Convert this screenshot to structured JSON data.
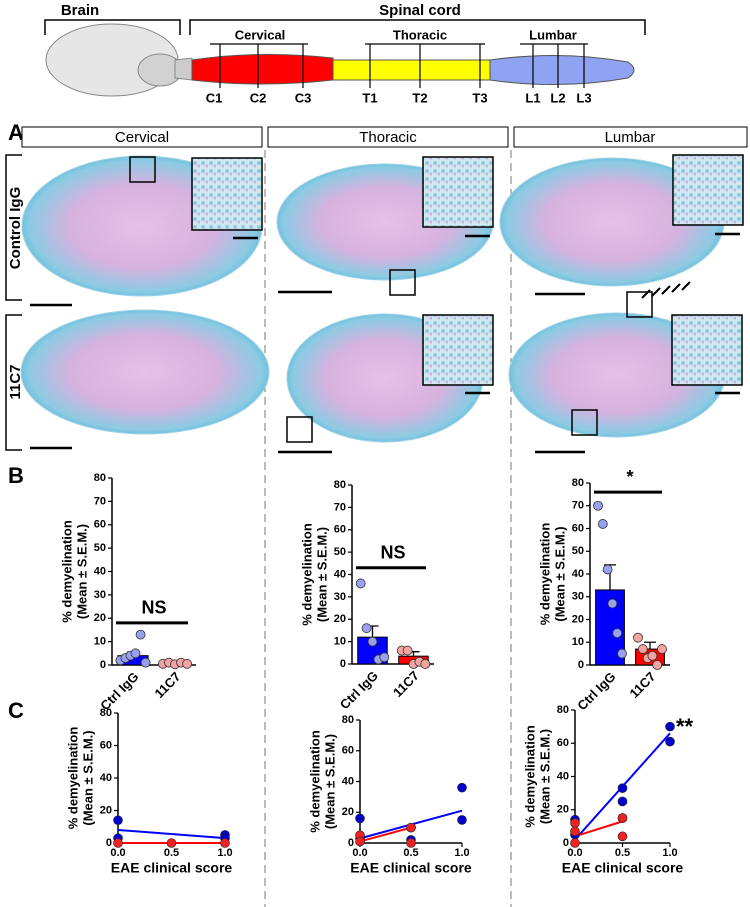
{
  "diagram": {
    "brain": "Brain",
    "spinal_cord": "Spinal cord",
    "regions": [
      {
        "name": "Cervical",
        "segments": [
          "C1",
          "C2",
          "C3"
        ]
      },
      {
        "name": "Thoracic",
        "segments": [
          "T1",
          "T2",
          "T3"
        ]
      },
      {
        "name": "Lumbar",
        "segments": [
          "L1",
          "L2",
          "L3"
        ]
      }
    ]
  },
  "panel_labels": [
    "A",
    "B",
    "C"
  ],
  "columns": [
    "Cervical",
    "Thoracic",
    "Lumbar"
  ],
  "rows": [
    "Control IgG",
    "11C7"
  ],
  "chart_data": [
    {
      "type": "bar",
      "ylabel": [
        "% demyelination",
        "(Mean ± S.E.M.)"
      ],
      "categories": [
        "Ctrl IgG",
        "11C7"
      ],
      "values": [
        4,
        0.5
      ],
      "errors": [
        1.5,
        0.3
      ],
      "colors": [
        "#0000ff",
        "#ff0000"
      ],
      "point_colors": [
        "#9aa0f0",
        "#f4a3a3"
      ],
      "points": [
        [
          2,
          3,
          4,
          5,
          13,
          1
        ],
        [
          0.5,
          1,
          0.3,
          1,
          0.5
        ]
      ],
      "annotation": "NS",
      "ylim": [
        0,
        80
      ],
      "yticks": [
        0,
        10,
        20,
        30,
        40,
        50,
        60,
        70,
        80
      ]
    },
    {
      "type": "bar",
      "ylabel": [
        "% demyelination",
        "(Mean ± S.E.M.)"
      ],
      "categories": [
        "Ctrl IgG",
        "11C7"
      ],
      "values": [
        12,
        3.5
      ],
      "errors": [
        5,
        2
      ],
      "colors": [
        "#0000ff",
        "#ff0000"
      ],
      "point_colors": [
        "#9aa0f0",
        "#f4a3a3"
      ],
      "points": [
        [
          36,
          16,
          10,
          2,
          3
        ],
        [
          6,
          6,
          0,
          1,
          0
        ]
      ],
      "annotation": "NS",
      "ylim": [
        0,
        80
      ],
      "yticks": [
        0,
        10,
        20,
        30,
        40,
        50,
        60,
        70,
        80
      ]
    },
    {
      "type": "bar",
      "ylabel": [
        "% demyelination",
        "(Mean ± S.E.M.)"
      ],
      "categories": [
        "Ctrl IgG",
        "11C7"
      ],
      "values": [
        33,
        7
      ],
      "errors": [
        11,
        3
      ],
      "colors": [
        "#0000ff",
        "#ff0000"
      ],
      "point_colors": [
        "#9aa0f0",
        "#f4a3a3"
      ],
      "points": [
        [
          70,
          62,
          42,
          27,
          14,
          5
        ],
        [
          12,
          7,
          3,
          4,
          0,
          7
        ]
      ],
      "annotation": "*",
      "ylim": [
        0,
        80
      ],
      "yticks": [
        0,
        10,
        20,
        30,
        40,
        50,
        60,
        70,
        80
      ]
    },
    {
      "type": "scatter",
      "ylabel": [
        "% demyelination",
        "(Mean ± S.E.M.)"
      ],
      "xlabel": "EAE clinical score",
      "series": [
        {
          "color": "#0000cc",
          "x": [
            0,
            0,
            1,
            1
          ],
          "y": [
            14,
            3,
            5,
            3
          ]
        },
        {
          "color": "#ee2222",
          "x": [
            0,
            0.5,
            1
          ],
          "y": [
            0,
            0,
            0
          ]
        }
      ],
      "fits": [
        {
          "color": "#0000ff",
          "x": [
            0,
            1
          ],
          "y": [
            8,
            3
          ]
        },
        {
          "color": "#ff0000",
          "x": [
            0,
            1
          ],
          "y": [
            0,
            0
          ]
        }
      ],
      "xlim": [
        0,
        1
      ],
      "xticks": [
        {
          "value": 0,
          "label": "0.0"
        },
        {
          "value": 0.5,
          "label": "0.5"
        },
        {
          "value": 1,
          "label": "1.0"
        }
      ],
      "ylim": [
        0,
        80
      ],
      "yticks": [
        0,
        20,
        40,
        60,
        80
      ]
    },
    {
      "type": "scatter",
      "ylabel": [
        "% demyelination",
        "(Mean ± S.E.M.)"
      ],
      "xlabel": "EAE clinical score",
      "series": [
        {
          "color": "#0000cc",
          "x": [
            0,
            0,
            0.5,
            0.5,
            1,
            1
          ],
          "y": [
            16,
            3,
            10,
            2,
            36,
            15
          ]
        },
        {
          "color": "#ee2222",
          "x": [
            0,
            0,
            0.5,
            0.5
          ],
          "y": [
            5,
            1,
            10,
            0
          ]
        }
      ],
      "fits": [
        {
          "color": "#0000ff",
          "x": [
            0,
            1
          ],
          "y": [
            3,
            21
          ]
        },
        {
          "color": "#ff0000",
          "x": [
            0,
            0.5
          ],
          "y": [
            1,
            10
          ]
        }
      ],
      "xlim": [
        0,
        1
      ],
      "xticks": [
        {
          "value": 0,
          "label": "0.0"
        },
        {
          "value": 0.5,
          "label": "0.5"
        },
        {
          "value": 1,
          "label": "1.0"
        }
      ],
      "ylim": [
        0,
        80
      ],
      "yticks": [
        0,
        20,
        40,
        60,
        80
      ]
    },
    {
      "type": "scatter",
      "ylabel": [
        "% demyelination",
        "(Mean ± S.E.M.)"
      ],
      "xlabel": "EAE clinical score",
      "series": [
        {
          "color": "#0000cc",
          "x": [
            0,
            0,
            0.5,
            0.5,
            0.5,
            1,
            1
          ],
          "y": [
            5,
            14,
            33,
            25,
            15,
            70,
            61
          ]
        },
        {
          "color": "#ee2222",
          "x": [
            0,
            0,
            0,
            0.5,
            0.5
          ],
          "y": [
            12,
            7,
            0,
            15,
            4
          ]
        }
      ],
      "fits": [
        {
          "color": "#0000ff",
          "x": [
            0,
            1
          ],
          "y": [
            2,
            66
          ]
        },
        {
          "color": "#ff0000",
          "x": [
            0,
            0.5
          ],
          "y": [
            4,
            13
          ]
        }
      ],
      "annotation": "**",
      "xlim": [
        0,
        1
      ],
      "xticks": [
        {
          "value": 0,
          "label": "0.0"
        },
        {
          "value": 0.5,
          "label": "0.5"
        },
        {
          "value": 1,
          "label": "1.0"
        }
      ],
      "ylim": [
        0,
        80
      ],
      "yticks": [
        0,
        20,
        40,
        60,
        80
      ]
    }
  ]
}
